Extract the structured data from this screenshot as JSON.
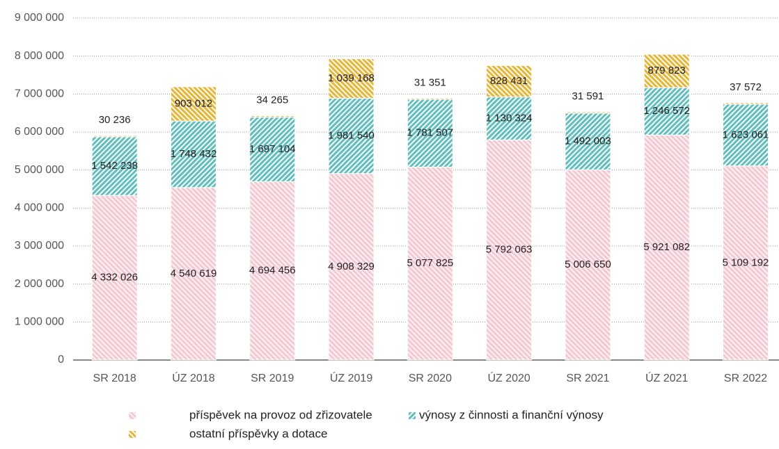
{
  "chart_data": {
    "type": "stacked_bar",
    "categories": [
      "SR 2018",
      "ÚZ 2018",
      "SR 2019",
      "ÚZ 2019",
      "SR 2020",
      "ÚZ 2020",
      "SR 2021",
      "ÚZ 2021",
      "SR 2022"
    ],
    "series": [
      {
        "name": "příspěvek na provoz od zřizovatele",
        "color": "#f3c6cf",
        "values": [
          4332026,
          4540619,
          4694456,
          4908329,
          5077825,
          5792063,
          5006650,
          5921082,
          5109192
        ],
        "value_labels": [
          "4 332 026",
          "4 540 619",
          "4 694 456",
          "4 908 329",
          "5 077 825",
          "5 792 063",
          "5 006 650",
          "5 921 082",
          "5 109 192"
        ]
      },
      {
        "name": "výnosy z činnosti a finanční výnosy",
        "color": "#5cbfbd",
        "values": [
          1542238,
          1748432,
          1697104,
          1981540,
          1781507,
          1130324,
          1492003,
          1246572,
          1623061
        ],
        "value_labels": [
          "1 542 238",
          "1 748 432",
          "1 697 104",
          "1 981 540",
          "1 781 507",
          "1 130 324",
          "1 492 003",
          "1 246 572",
          "1 623 061"
        ]
      },
      {
        "name": "ostatní příspěvky a dotace",
        "color": "#e9b530",
        "values": [
          30236,
          903012,
          34265,
          1039168,
          31351,
          828431,
          31591,
          879823,
          37572
        ],
        "value_labels": [
          "30 236",
          "903 012",
          "34 265",
          "1 039 168",
          "31 351",
          "828 431",
          "31 591",
          "879 823",
          "37 572"
        ]
      }
    ],
    "ylim": [
      0,
      9000000
    ],
    "yticks": [
      0,
      {
        "value": 1000000,
        "label": "1 000 000"
      },
      {
        "value": 2000000,
        "label": "2 000 000"
      },
      {
        "value": 3000000,
        "label": "3 000 000"
      },
      {
        "value": 4000000,
        "label": "4 000 000"
      },
      {
        "value": 5000000,
        "label": "5 000 000"
      },
      {
        "value": 6000000,
        "label": "6 000 000"
      },
      {
        "value": 7000000,
        "label": "7 000 000"
      },
      {
        "value": 8000000,
        "label": "8 000 000"
      },
      {
        "value": 9000000,
        "label": "9 000 000"
      }
    ],
    "grid": true
  }
}
